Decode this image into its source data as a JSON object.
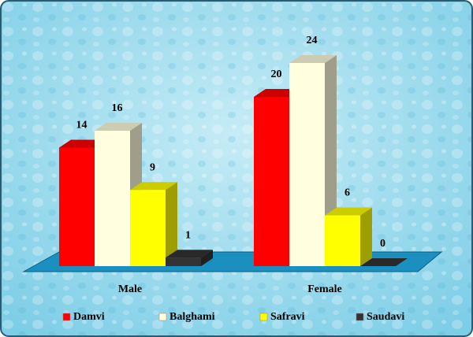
{
  "chart_data": {
    "type": "bar3d",
    "categories": [
      "Male",
      "Female"
    ],
    "series": [
      {
        "name": "Damvi",
        "color": "#ff0000",
        "values": [
          14,
          20
        ]
      },
      {
        "name": "Balghami",
        "color": "#ffffe0",
        "values": [
          16,
          24
        ]
      },
      {
        "name": "Safravi",
        "color": "#ffff00",
        "values": [
          9,
          6
        ]
      },
      {
        "name": "Saudavi",
        "color": "#333333",
        "values": [
          1,
          0
        ]
      }
    ],
    "legend": "bottom"
  }
}
